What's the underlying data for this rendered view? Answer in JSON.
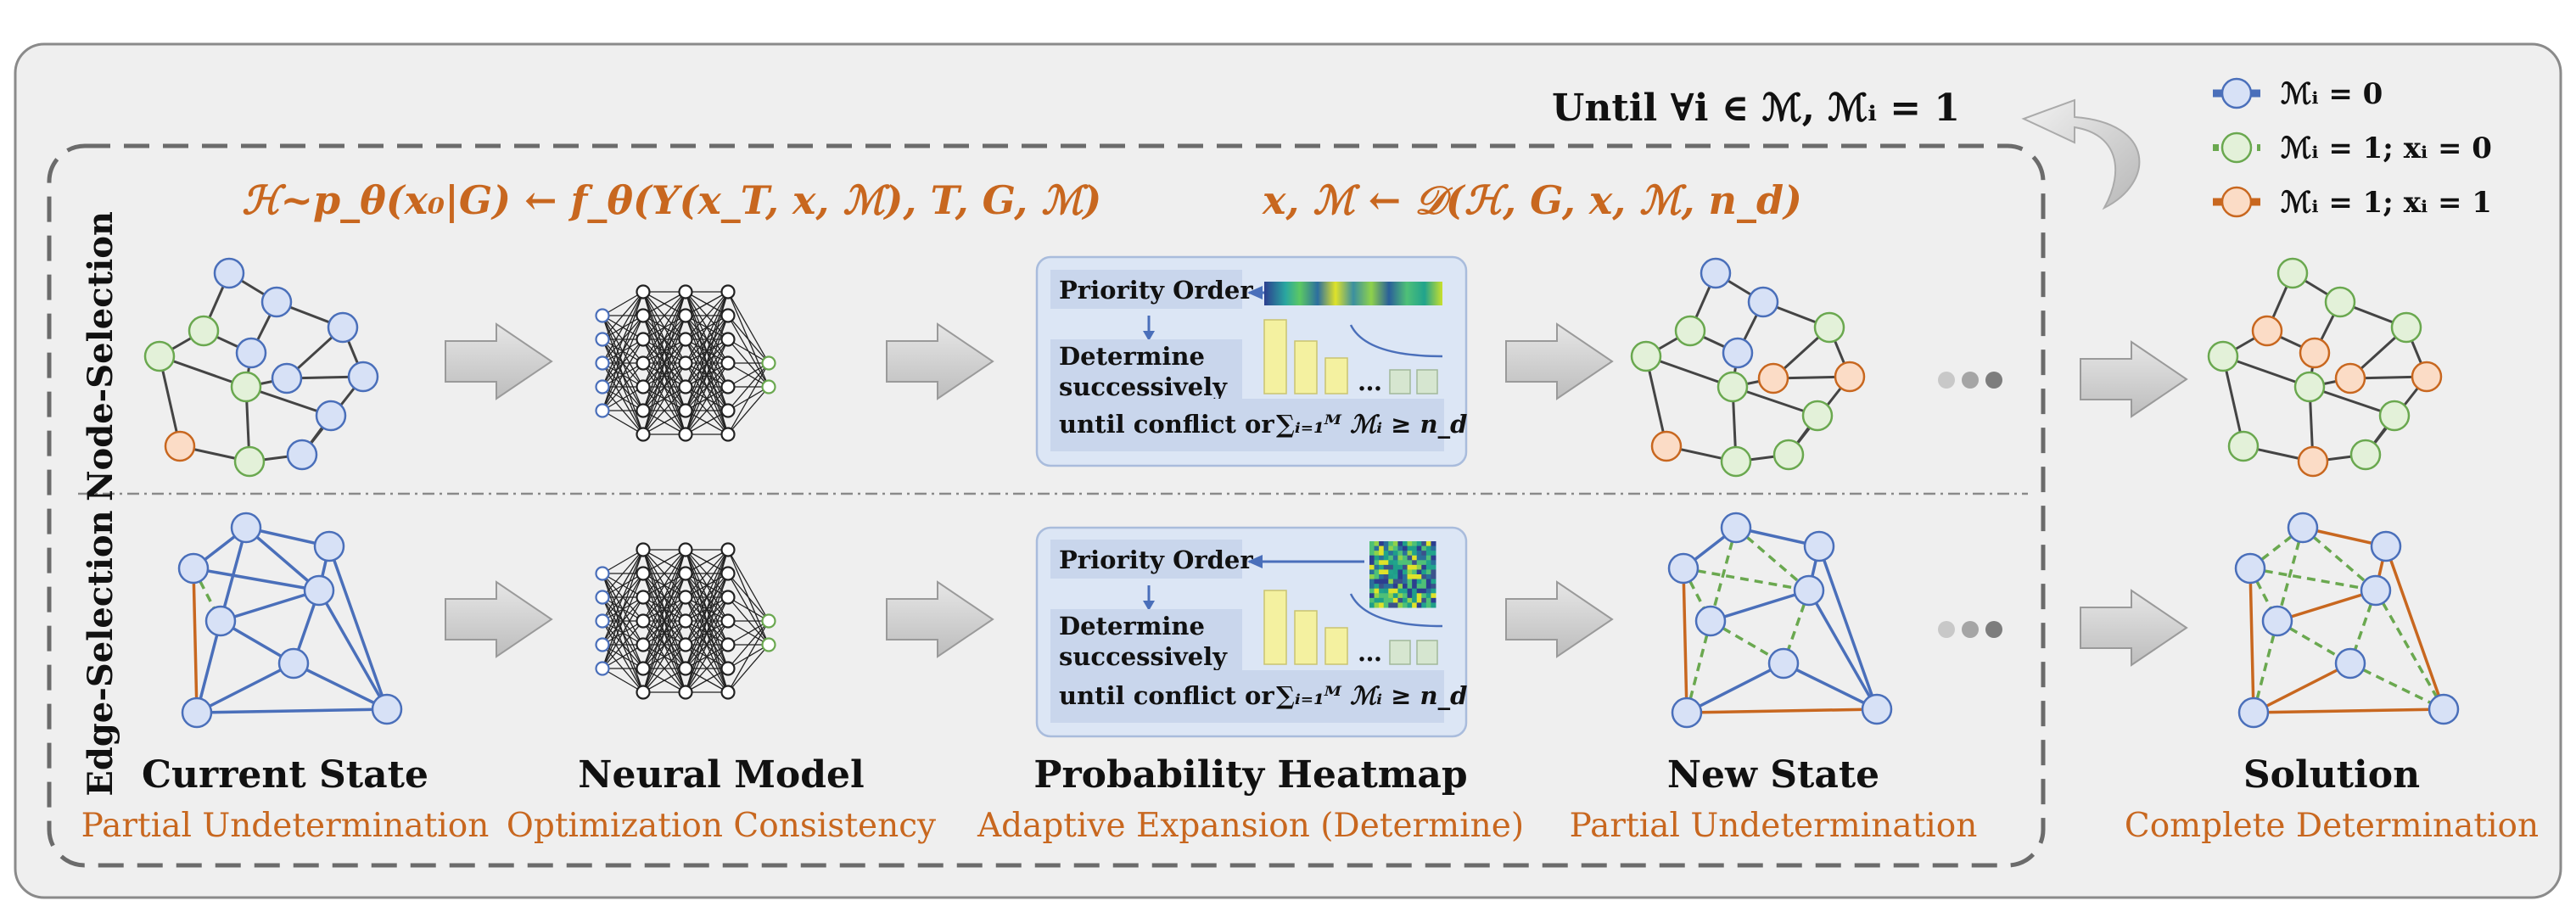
{
  "loop_label": "Until ∀i ∈ ℳ, ℳᵢ = 1",
  "legend": [
    {
      "label": "ℳᵢ = 0",
      "color": "#4a6fba",
      "fill": "#d7e1f6",
      "style": "solid"
    },
    {
      "label": "ℳᵢ = 1; xᵢ = 0",
      "color": "#6aa84f",
      "fill": "#e3f1d9",
      "style": "dotted"
    },
    {
      "label": "ℳᵢ = 1; xᵢ = 1",
      "color": "#c8671f",
      "fill": "#fbdcc6",
      "style": "solid"
    }
  ],
  "formula_left": "ℋ~p_θ(x₀|G) ← f_θ(Y(x_T, x, ℳ), T, G, ℳ)",
  "formula_right": "x, ℳ ← 𝒟(ℋ, G, x, ℳ, n_d)",
  "row_labels": {
    "top": "Node-Selection",
    "bottom": "Edge-Selection"
  },
  "heatmap_box": {
    "priority": "Priority Order",
    "determine_1": "Determine",
    "determine_2": "successively",
    "until": "until conflict or",
    "sum": "∑ᵢ₌₁ᴹ ℳᵢ ≥ n_d",
    "ellipsis": "…"
  },
  "stages": [
    {
      "title": "Current State",
      "subtitle": "Partial Undetermination"
    },
    {
      "title": "Neural Model",
      "subtitle": "Optimization Consistency"
    },
    {
      "title": "Probability Heatmap",
      "subtitle": "Adaptive Expansion (Determine)"
    },
    {
      "title": "New State",
      "subtitle": "Partial Undetermination"
    },
    {
      "title": "Solution",
      "subtitle": "Complete Determination"
    }
  ],
  "colors": {
    "orange": "#c8671f",
    "blue": "#4a6fba",
    "green": "#6aa84f",
    "panel": "#efefef",
    "box": "#dce6f5"
  }
}
